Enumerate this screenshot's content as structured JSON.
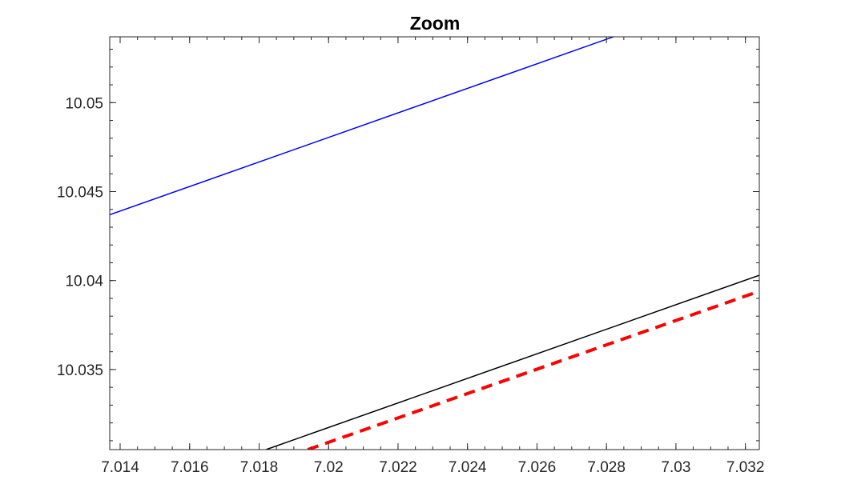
{
  "chart_data": {
    "type": "line",
    "title": "Zoom",
    "xlabel": "",
    "ylabel": "",
    "xlim": [
      7.0137,
      7.0324
    ],
    "ylim": [
      10.0305,
      10.0537
    ],
    "grid": false,
    "legend": "none",
    "x_ticks": [
      7.014,
      7.016,
      7.018,
      7.02,
      7.022,
      7.024,
      7.026,
      7.028,
      7.03,
      7.032
    ],
    "x_tick_labels": [
      "7.014",
      "7.016",
      "7.018",
      "7.02",
      "7.022",
      "7.024",
      "7.026",
      "7.028",
      "7.03",
      "7.032"
    ],
    "y_ticks": [
      10.035,
      10.04,
      10.045,
      10.05
    ],
    "y_tick_labels": [
      "10.035",
      "10.04",
      "10.045",
      "10.05"
    ],
    "series": [
      {
        "color": "#0000ff",
        "style": "solid",
        "width": 1.5,
        "x": [
          7.0137,
          7.0282
        ],
        "y": [
          10.0437,
          10.0537
        ]
      },
      {
        "color": "#000000",
        "style": "solid",
        "width": 1.5,
        "x": [
          7.0182,
          7.0324
        ],
        "y": [
          10.0305,
          10.0403
        ]
      },
      {
        "color": "#ff0000",
        "style": "dashed",
        "width": 4,
        "x": [
          7.0194,
          7.0324
        ],
        "y": [
          10.0305,
          10.0394
        ]
      }
    ]
  }
}
